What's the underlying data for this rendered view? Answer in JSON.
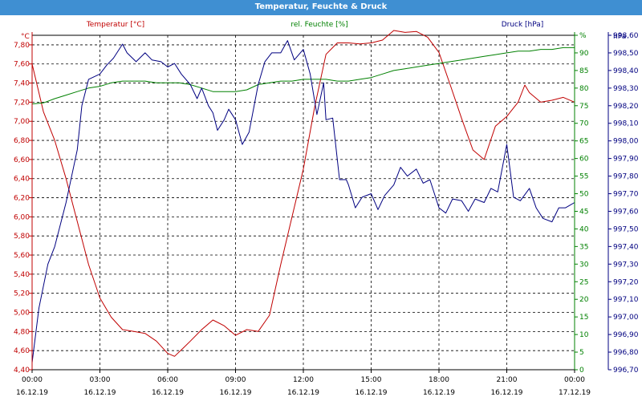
{
  "window": {
    "title": "Temperatur, Feuchte & Druck"
  },
  "chart_data": {
    "type": "line",
    "title": "Temperatur, Feuchte & Druck",
    "grid": true,
    "x": {
      "min": 0,
      "max": 24,
      "unit": "hours since 16.12.19 00:00",
      "ticks": [
        0,
        3,
        6,
        9,
        12,
        15,
        18,
        21,
        24
      ],
      "tick_time_labels": [
        "00:00",
        "03:00",
        "06:00",
        "09:00",
        "12:00",
        "15:00",
        "18:00",
        "21:00",
        "00:00"
      ],
      "tick_date_labels": [
        "16.12.19",
        "16.12.19",
        "16.12.19",
        "16.12.19",
        "16.12.19",
        "16.12.19",
        "16.12.19",
        "16.12.19",
        "17.12.19"
      ]
    },
    "axes": {
      "temperature": {
        "label": "Temperatur [°C]",
        "unit": "°C",
        "min": 4.4,
        "max": 7.9,
        "ticks": [
          4.4,
          4.6,
          4.8,
          5.0,
          5.2,
          5.4,
          5.6,
          5.8,
          6.0,
          6.2,
          6.4,
          6.6,
          6.8,
          7.0,
          7.2,
          7.4,
          7.6,
          7.8
        ],
        "tick_labels": [
          "4,40",
          "4,60",
          "4,80",
          "5,00",
          "5,20",
          "5,40",
          "5,60",
          "5,80",
          "6,00",
          "6,20",
          "6,40",
          "6,60",
          "6,80",
          "7,00",
          "7,20",
          "7,40",
          "7,60",
          "7,80"
        ]
      },
      "humidity": {
        "label": "rel. Feuchte [%]",
        "unit": "%",
        "min": 0,
        "max": 95,
        "ticks": [
          0,
          5,
          10,
          15,
          20,
          25,
          30,
          35,
          40,
          45,
          50,
          55,
          60,
          65,
          70,
          75,
          80,
          85,
          90,
          95
        ],
        "tick_labels": [
          "0",
          "5",
          "10",
          "15",
          "20",
          "25",
          "30",
          "35",
          "40",
          "45",
          "50",
          "55",
          "60",
          "65",
          "70",
          "75",
          "80",
          "85",
          "90",
          "%"
        ]
      },
      "pressure": {
        "label": "Druck [hPa]",
        "unit": "hPa",
        "min": 996.7,
        "max": 998.6,
        "ticks": [
          996.7,
          996.8,
          996.9,
          997.0,
          997.1,
          997.2,
          997.3,
          997.4,
          997.5,
          997.6,
          997.7,
          997.8,
          997.9,
          998.0,
          998.1,
          998.2,
          998.3,
          998.4,
          998.5,
          998.6
        ],
        "tick_labels": [
          "996,70",
          "996,80",
          "996,90",
          "997,00",
          "997,10",
          "997,20",
          "997,30",
          "997,40",
          "997,50",
          "997,60",
          "997,70",
          "997,80",
          "997,90",
          "998,00",
          "998,10",
          "998,20",
          "998,30",
          "998,40",
          "998,50",
          "998,60"
        ]
      }
    },
    "series": [
      {
        "name": "Temperatur [°C]",
        "axis": "temperature",
        "color": "#c00000",
        "x": [
          0,
          0.5,
          1,
          1.5,
          2,
          2.5,
          3,
          3.5,
          4,
          4.5,
          5,
          5.5,
          6,
          6.3,
          6.7,
          7,
          7.5,
          8,
          8.5,
          9,
          9.5,
          10,
          10.5,
          11,
          11.5,
          12,
          12.5,
          13,
          13.5,
          14,
          14.5,
          15,
          15.5,
          16,
          16.5,
          17,
          17.5,
          18,
          18.5,
          19,
          19.5,
          20,
          20.5,
          21,
          21.5,
          21.8,
          22,
          22.5,
          23,
          23.5,
          24
        ],
        "values": [
          7.6,
          7.1,
          6.8,
          6.4,
          5.95,
          5.5,
          5.15,
          4.95,
          4.82,
          4.8,
          4.78,
          4.7,
          4.57,
          4.54,
          4.63,
          4.7,
          4.82,
          4.92,
          4.86,
          4.76,
          4.82,
          4.8,
          4.97,
          5.5,
          6.0,
          6.5,
          7.15,
          7.7,
          7.82,
          7.82,
          7.81,
          7.82,
          7.85,
          7.95,
          7.93,
          7.94,
          7.88,
          7.72,
          7.38,
          7.03,
          6.7,
          6.6,
          6.95,
          7.05,
          7.2,
          7.38,
          7.3,
          7.2,
          7.22,
          7.25,
          7.2
        ]
      },
      {
        "name": "rel. Feuchte [%]",
        "axis": "humidity",
        "color": "#008000",
        "x": [
          0,
          0.5,
          1,
          1.5,
          2,
          2.5,
          3,
          3.5,
          4,
          4.5,
          5,
          5.5,
          6,
          6.5,
          7,
          7.5,
          8,
          8.5,
          9,
          9.5,
          10,
          10.5,
          11,
          11.5,
          12,
          12.5,
          13,
          13.5,
          14,
          14.5,
          15,
          15.5,
          16,
          16.5,
          17,
          17.5,
          18,
          18.5,
          19,
          19.5,
          20,
          20.5,
          21,
          21.5,
          22,
          22.5,
          23,
          23.5,
          24
        ],
        "values": [
          75.5,
          75.8,
          77,
          78,
          79,
          80,
          80.5,
          81.5,
          82,
          82,
          82,
          81.5,
          81.5,
          81.5,
          81,
          80,
          79,
          79,
          79,
          79.5,
          81,
          81.5,
          82,
          82,
          82.5,
          82.5,
          82.5,
          82,
          82,
          82.5,
          83,
          84,
          85,
          85.5,
          86,
          86.5,
          87,
          87.5,
          88,
          88.5,
          89,
          89.5,
          90,
          90.5,
          90.5,
          91,
          91,
          91.5,
          91.5
        ]
      },
      {
        "name": "Druck [hPa]",
        "axis": "pressure",
        "color": "#000080",
        "x": [
          0,
          0.3,
          0.7,
          1,
          1.5,
          2,
          2.2,
          2.5,
          3,
          3.3,
          3.6,
          4,
          4.2,
          4.6,
          5,
          5.3,
          5.7,
          6,
          6.3,
          6.6,
          7,
          7.3,
          7.5,
          7.8,
          8,
          8.2,
          8.5,
          8.7,
          9,
          9.3,
          9.6,
          10,
          10.3,
          10.6,
          11,
          11.3,
          11.6,
          12,
          12.3,
          12.6,
          12.9,
          13,
          13.3,
          13.6,
          13.9,
          14,
          14.3,
          14.6,
          15,
          15.3,
          15.6,
          16,
          16.3,
          16.6,
          17,
          17.3,
          17.6,
          18,
          18.3,
          18.6,
          19,
          19.3,
          19.6,
          20,
          20.3,
          20.6,
          21,
          21.3,
          21.6,
          22,
          22.3,
          22.6,
          23,
          23.3,
          23.6,
          24
        ],
        "values": [
          996.74,
          997.05,
          997.3,
          997.4,
          997.65,
          997.95,
          998.2,
          998.35,
          998.38,
          998.43,
          998.47,
          998.55,
          998.5,
          998.45,
          998.5,
          998.46,
          998.45,
          998.42,
          998.44,
          998.38,
          998.32,
          998.24,
          998.3,
          998.2,
          998.16,
          998.06,
          998.12,
          998.18,
          998.12,
          997.98,
          998.05,
          998.32,
          998.45,
          998.5,
          998.5,
          998.57,
          998.46,
          998.52,
          998.38,
          998.15,
          998.33,
          998.12,
          998.13,
          997.78,
          997.78,
          997.75,
          997.62,
          997.68,
          997.7,
          997.61,
          997.69,
          997.75,
          997.85,
          997.8,
          997.84,
          997.76,
          997.78,
          997.62,
          997.59,
          997.67,
          997.66,
          997.6,
          997.67,
          997.65,
          997.73,
          997.71,
          997.98,
          997.68,
          997.66,
          997.73,
          997.62,
          997.56,
          997.54,
          997.62,
          997.62,
          997.65
        ]
      }
    ],
    "legend": [
      {
        "label": "Temperatur [°C]",
        "placement": "top-left",
        "color": "#c00000"
      },
      {
        "label": "rel. Feuchte [%]",
        "placement": "top-center",
        "color": "#008000"
      },
      {
        "label": "Druck [hPa]",
        "placement": "top-right",
        "color": "#000080"
      }
    ],
    "unit_labels": {
      "temperature": "°C",
      "pressure": "hPa"
    }
  }
}
